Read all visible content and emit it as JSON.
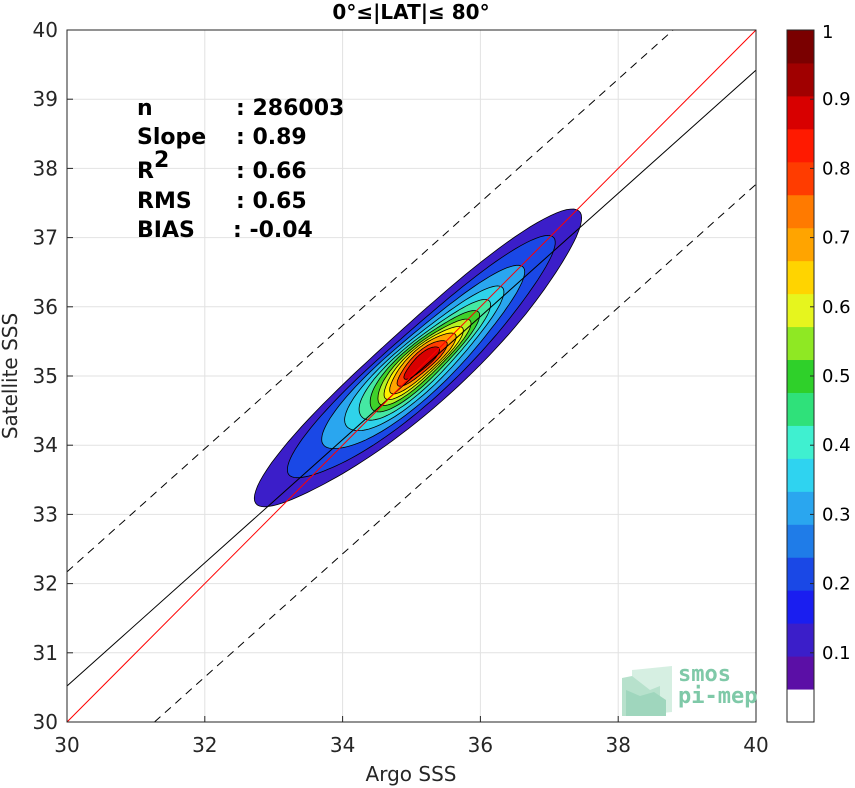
{
  "chart_data": {
    "type": "heatmap",
    "title": "0°≤|LAT|≤ 80°",
    "xlabel": "Argo SSS",
    "ylabel": "Satellite SSS",
    "xlim": [
      30,
      40
    ],
    "ylim": [
      30,
      40
    ],
    "xticks": [
      "30",
      "32",
      "34",
      "36",
      "38",
      "40"
    ],
    "yticks": [
      "30",
      "31",
      "32",
      "33",
      "34",
      "35",
      "36",
      "37",
      "38",
      "39",
      "40"
    ],
    "grid": true,
    "stats": [
      {
        "key": "n",
        "value": ": 286003"
      },
      {
        "key": "Slope",
        "value": ": 0.89"
      },
      {
        "key": "R",
        "sup": "2",
        "value": ": 0.66"
      },
      {
        "key": "RMS",
        "value": ": 0.65"
      },
      {
        "key": "BIAS",
        "value": ": -0.04"
      }
    ],
    "lines": {
      "one_to_one": {
        "slope": 1,
        "intercept": 0,
        "color": "#ff0000"
      },
      "fit": {
        "slope": 0.89,
        "intercept": 3.82,
        "color": "#000000"
      },
      "fit_upper": {
        "slope": 0.89,
        "intercept": 5.47,
        "style": "dashed"
      },
      "fit_lower": {
        "slope": 0.89,
        "intercept": 2.17,
        "style": "dashed"
      }
    },
    "density": {
      "center": [
        35.15,
        35.2
      ],
      "angle_deg": 42,
      "levels": [
        {
          "level": 0.05,
          "a": 3.0,
          "b": 0.6,
          "color": "#3b1ec9"
        },
        {
          "level": 0.15,
          "a": 2.45,
          "b": 0.5,
          "color": "#1a48e6"
        },
        {
          "level": 0.25,
          "a": 1.85,
          "b": 0.43,
          "color": "#2aa6ef"
        },
        {
          "level": 0.3,
          "a": 1.45,
          "b": 0.37,
          "color": "#2fd3ea"
        },
        {
          "level": 0.4,
          "a": 1.2,
          "b": 0.32,
          "color": "#45e8a3"
        },
        {
          "level": 0.5,
          "a": 1.0,
          "b": 0.28,
          "color": "#3fd22b"
        },
        {
          "level": 0.6,
          "a": 0.85,
          "b": 0.24,
          "color": "#b6f224"
        },
        {
          "level": 0.65,
          "a": 0.72,
          "b": 0.21,
          "color": "#ffee00"
        },
        {
          "level": 0.7,
          "a": 0.6,
          "b": 0.18,
          "color": "#ffa400"
        },
        {
          "level": 0.8,
          "a": 0.45,
          "b": 0.14,
          "color": "#ff3c00"
        },
        {
          "level": 0.9,
          "a": 0.32,
          "b": 0.1,
          "color": "#d80000"
        }
      ]
    },
    "colorbar": {
      "ticks": [
        "0.1",
        "0.2",
        "0.3",
        "0.4",
        "0.5",
        "0.6",
        "0.7",
        "0.8",
        "0.9",
        "1"
      ],
      "colors": [
        "#ffffff",
        "#5b0fa6",
        "#3b1ec9",
        "#1a1ef0",
        "#1a48e6",
        "#1f7ce8",
        "#2aa6ef",
        "#2fd3f0",
        "#3ff0d0",
        "#2fe17a",
        "#2fd02a",
        "#8fe823",
        "#e6f51e",
        "#ffd400",
        "#ffa400",
        "#ff7a00",
        "#ff3c00",
        "#ff1a00",
        "#d80000",
        "#a00000",
        "#7a0000"
      ]
    },
    "logo": [
      "smos",
      "pi-mep"
    ]
  }
}
